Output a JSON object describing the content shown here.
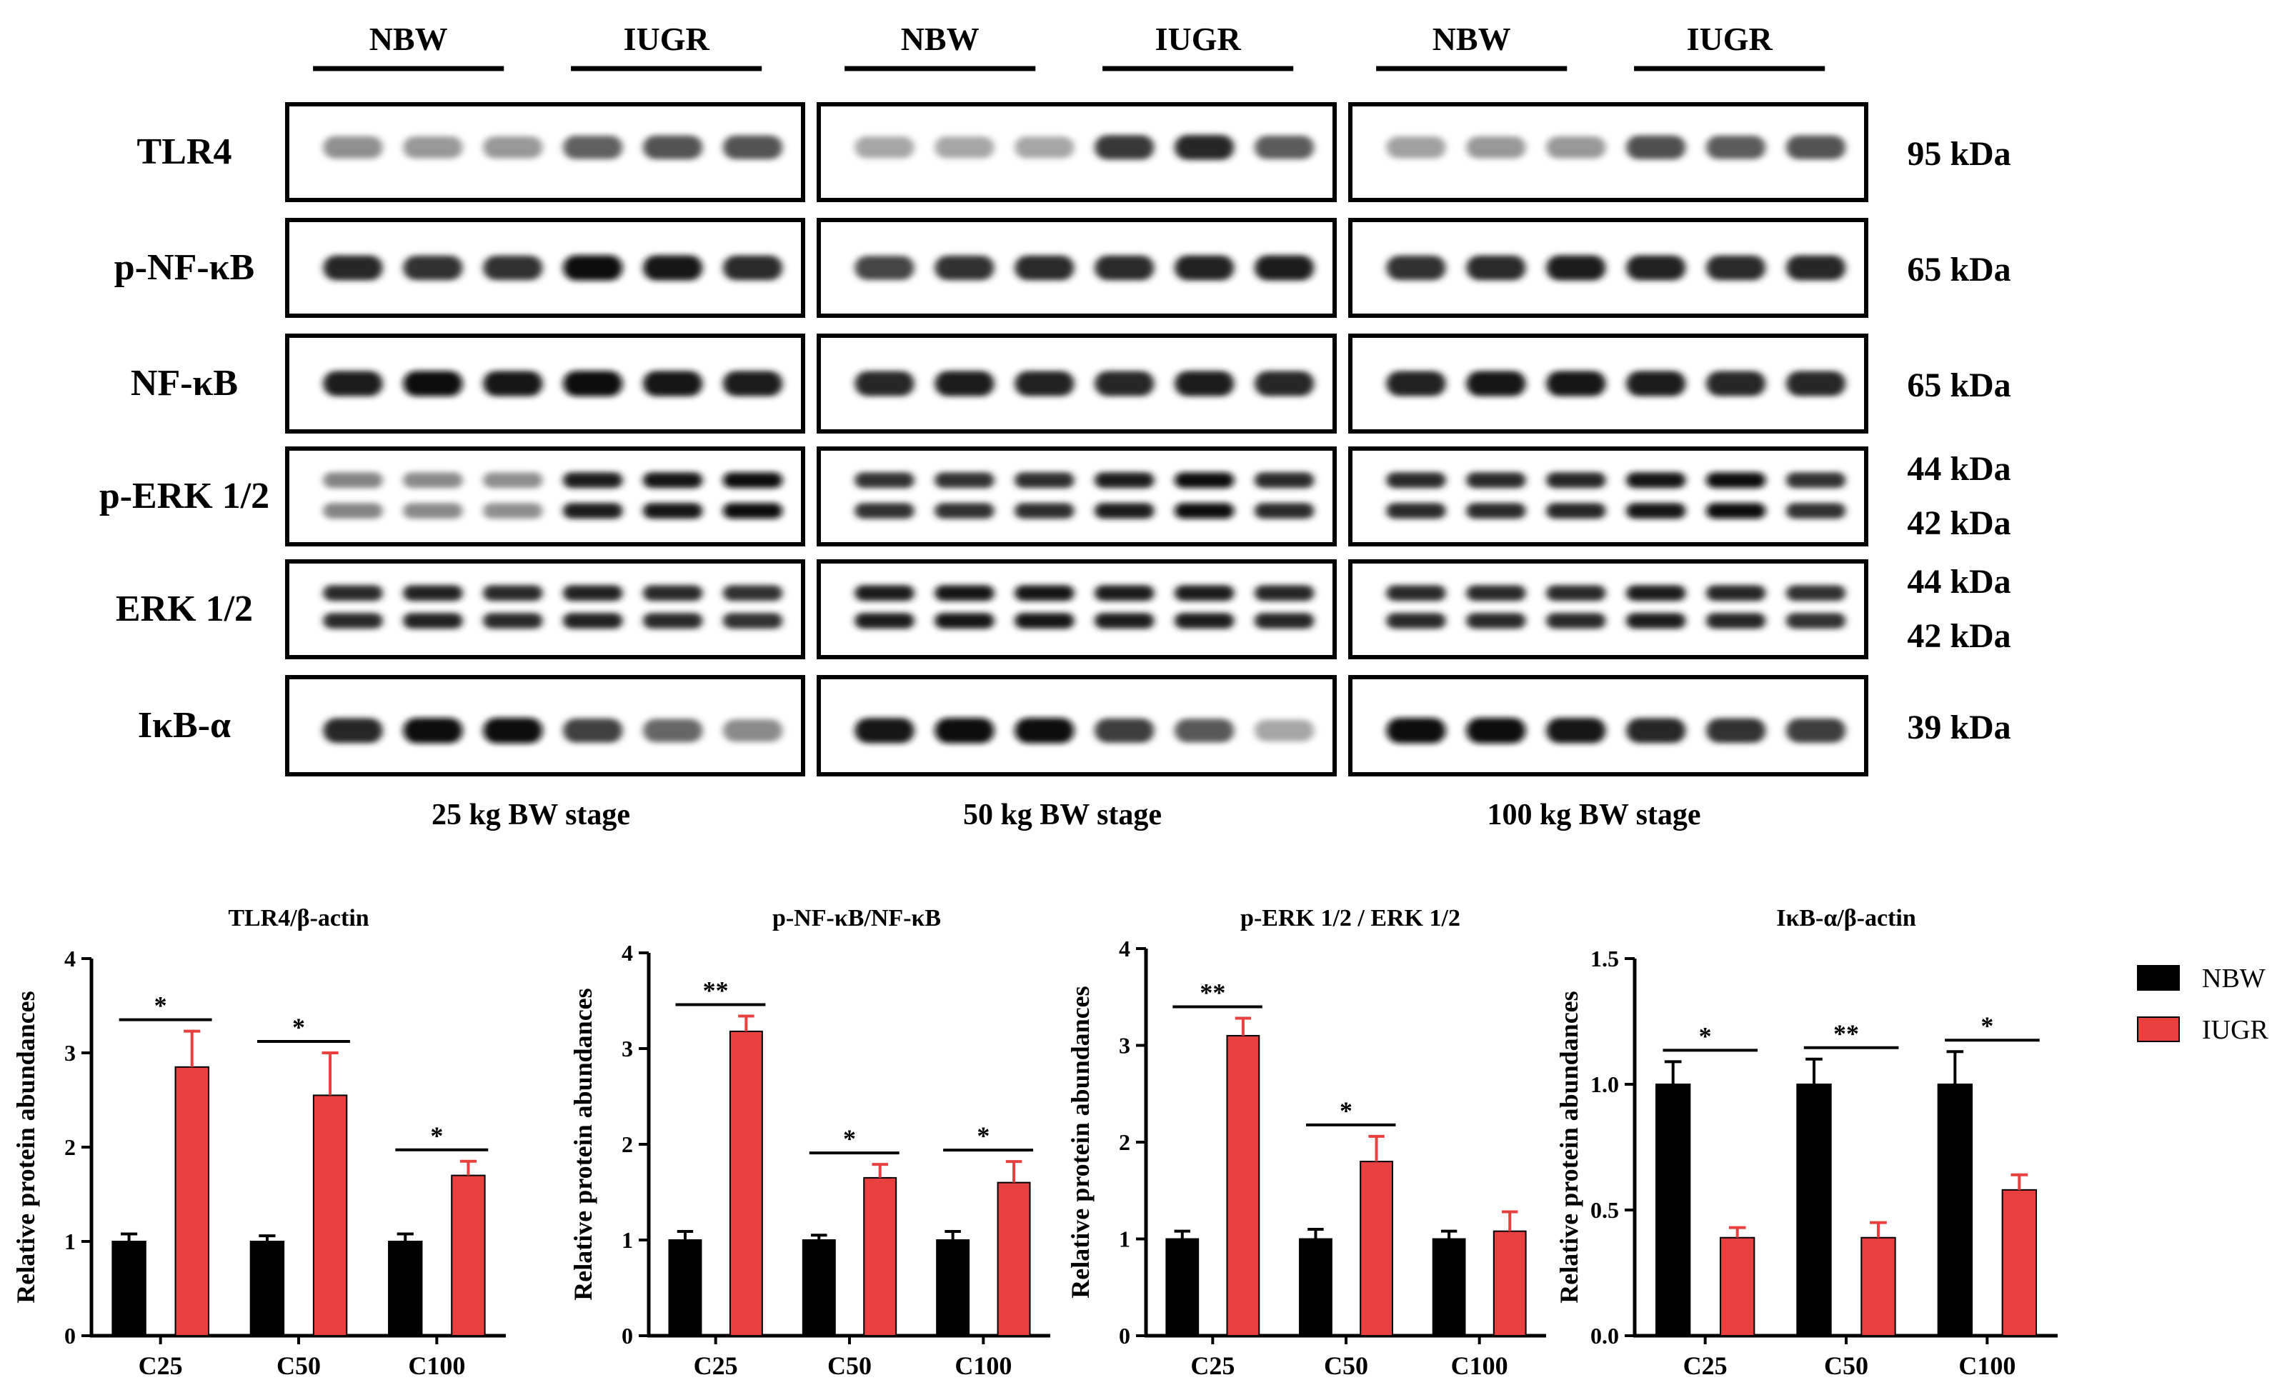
{
  "blot": {
    "group_headers": [
      "NBW",
      "IUGR"
    ],
    "rows": [
      {
        "label": "TLR4",
        "kda": [
          "95 kDa"
        ]
      },
      {
        "label": "p-NF-κB",
        "kda": [
          "65 kDa"
        ]
      },
      {
        "label": "NF-κB",
        "kda": [
          "65 kDa"
        ]
      },
      {
        "label": "p-ERK 1/2",
        "kda": [
          "44 kDa",
          "42 kDa"
        ]
      },
      {
        "label": "ERK 1/2",
        "kda": [
          "44 kDa",
          "42 kDa"
        ]
      },
      {
        "label": "IκB-α",
        "kda": [
          "39 kDa"
        ]
      }
    ],
    "stages": [
      "25 kg BW stage",
      "50 kg BW stage",
      "100 kg BW stage"
    ],
    "band_intensity": [
      [
        [
          0.4,
          0.36,
          0.36,
          0.6,
          0.66,
          0.66
        ],
        [
          0.3,
          0.3,
          0.3,
          0.78,
          0.86,
          0.62
        ],
        [
          0.32,
          0.36,
          0.36,
          0.68,
          0.62,
          0.66
        ]
      ],
      [
        [
          0.86,
          0.8,
          0.8,
          0.95,
          0.92,
          0.84
        ],
        [
          0.72,
          0.8,
          0.84,
          0.84,
          0.88,
          0.9
        ],
        [
          0.8,
          0.84,
          0.9,
          0.88,
          0.84,
          0.86
        ]
      ],
      [
        [
          0.9,
          0.95,
          0.92,
          0.96,
          0.94,
          0.9
        ],
        [
          0.86,
          0.9,
          0.88,
          0.86,
          0.9,
          0.86
        ],
        [
          0.88,
          0.92,
          0.92,
          0.9,
          0.86,
          0.86
        ]
      ],
      [
        [
          0.45,
          0.42,
          0.4,
          0.9,
          0.92,
          0.95
        ],
        [
          0.8,
          0.8,
          0.82,
          0.9,
          0.95,
          0.84
        ],
        [
          0.84,
          0.84,
          0.86,
          0.92,
          0.95,
          0.8
        ]
      ],
      [
        [
          0.84,
          0.88,
          0.84,
          0.88,
          0.84,
          0.8
        ],
        [
          0.9,
          0.92,
          0.94,
          0.9,
          0.9,
          0.86
        ],
        [
          0.84,
          0.84,
          0.84,
          0.9,
          0.86,
          0.8
        ]
      ],
      [
        [
          0.86,
          0.95,
          0.98,
          0.74,
          0.58,
          0.42
        ],
        [
          0.92,
          0.95,
          0.95,
          0.76,
          0.64,
          0.3
        ],
        [
          0.95,
          0.98,
          0.94,
          0.86,
          0.8,
          0.76
        ]
      ]
    ]
  },
  "legend": [
    {
      "name": "NBW",
      "color": "#000000"
    },
    {
      "name": "IUGR",
      "color": "#e8403f"
    }
  ],
  "chart_data": [
    {
      "type": "bar",
      "title": "TLR4/β-actin",
      "ylabel": "Relative protein abundances",
      "categories": [
        "C25",
        "C50",
        "C100"
      ],
      "ylim": [
        0,
        4
      ],
      "yticks": [
        0,
        1,
        2,
        3,
        4
      ],
      "series": [
        {
          "name": "NBW",
          "values": [
            1.0,
            1.0,
            1.0
          ],
          "errors": [
            0.08,
            0.06,
            0.08
          ]
        },
        {
          "name": "IUGR",
          "values": [
            2.85,
            2.55,
            1.7
          ],
          "errors": [
            0.38,
            0.45,
            0.15
          ]
        }
      ],
      "significance": [
        "*",
        "*",
        "*"
      ]
    },
    {
      "type": "bar",
      "title": "p-NF-κB/NF-κB",
      "ylabel": "Relative protein abundances",
      "categories": [
        "C25",
        "C50",
        "C100"
      ],
      "ylim": [
        0,
        4
      ],
      "yticks": [
        0,
        1,
        2,
        3,
        4
      ],
      "series": [
        {
          "name": "NBW",
          "values": [
            1.0,
            1.0,
            1.0
          ],
          "errors": [
            0.09,
            0.05,
            0.09
          ]
        },
        {
          "name": "IUGR",
          "values": [
            3.18,
            1.65,
            1.6
          ],
          "errors": [
            0.16,
            0.14,
            0.22
          ]
        }
      ],
      "significance": [
        "**",
        "*",
        "*"
      ]
    },
    {
      "type": "bar",
      "title": "p-ERK 1/2 / ERK 1/2",
      "ylabel": "Relative protein abundances",
      "categories": [
        "C25",
        "C50",
        "C100"
      ],
      "ylim": [
        0,
        4
      ],
      "yticks": [
        0,
        1,
        2,
        3,
        4
      ],
      "series": [
        {
          "name": "NBW",
          "values": [
            1.0,
            1.0,
            1.0
          ],
          "errors": [
            0.08,
            0.1,
            0.08
          ]
        },
        {
          "name": "IUGR",
          "values": [
            3.1,
            1.8,
            1.08
          ],
          "errors": [
            0.18,
            0.26,
            0.2
          ]
        }
      ],
      "significance": [
        "**",
        "*",
        ""
      ]
    },
    {
      "type": "bar",
      "title": "IκB-α/β-actin",
      "ylabel": "Relative protein abundances",
      "categories": [
        "C25",
        "C50",
        "C100"
      ],
      "ylim": [
        0,
        1.5
      ],
      "yticks": [
        "0.0",
        "0.5",
        "1.0",
        "1.5"
      ],
      "series": [
        {
          "name": "NBW",
          "values": [
            1.0,
            1.0,
            1.0
          ],
          "errors": [
            0.09,
            0.1,
            0.13
          ]
        },
        {
          "name": "IUGR",
          "values": [
            0.39,
            0.39,
            0.58
          ],
          "errors": [
            0.04,
            0.06,
            0.06
          ]
        }
      ],
      "significance": [
        "*",
        "**",
        "*"
      ]
    }
  ]
}
